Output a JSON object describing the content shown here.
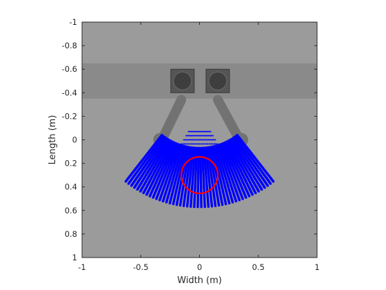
{
  "chart_data": {
    "type": "scatter",
    "title": "",
    "xlabel": "Width (m)",
    "ylabel": "Length (m)",
    "xlim": [
      -1,
      1
    ],
    "ylim": [
      -1,
      1
    ],
    "y_axis_direction": "reversed (-1 at top, 1 at bottom)",
    "xticks": [
      "-1",
      "-0.5",
      "0",
      "0.5",
      "1"
    ],
    "yticks": [
      "-1",
      "-0.8",
      "-0.6",
      "-0.4",
      "-0.2",
      "0",
      "0.2",
      "0.4",
      "0.6",
      "0.8",
      "1"
    ],
    "grid": false,
    "legend": "none",
    "background_image": {
      "description_of_scene": "top-down gray scene with a darker horizontal band, two square sensor boxes, and two gray arms with pivots",
      "band_y_range": [
        -0.65,
        -0.35
      ],
      "sensor_boxes": [
        {
          "center": [
            -0.145,
            -0.5
          ],
          "size": [
            0.2,
            0.2
          ]
        },
        {
          "center": [
            0.155,
            -0.5
          ],
          "size": [
            0.2,
            0.2
          ]
        }
      ],
      "arms": [
        {
          "from": [
            -0.155,
            -0.34
          ],
          "to": [
            -0.32,
            0.0
          ],
          "pivot": [
            -0.335,
            0.0
          ]
        },
        {
          "from": [
            0.155,
            -0.34
          ],
          "to": [
            0.34,
            0.0
          ],
          "pivot": [
            0.355,
            0.0
          ]
        }
      ]
    },
    "series": [
      {
        "marker": "point-cloud",
        "color": "#0000ff",
        "region": "annular sector",
        "apex": [
          0,
          -0.45
        ],
        "r_min": 0.52,
        "r_max": 1.02,
        "angle_deg_from_down": [
          -38,
          38
        ],
        "rows": 50,
        "cols": 46
      },
      {
        "marker": "circle",
        "color": "#ff0000",
        "center": [
          0,
          0.3
        ],
        "radius": 0.155
      }
    ]
  },
  "colors": {
    "floor": "#9b9b9b",
    "band": "#8a8a8a",
    "arm": "#727272",
    "sensor_outer": "#555555",
    "sensor_inner": "#3e3e3e",
    "axis": "#262626"
  }
}
